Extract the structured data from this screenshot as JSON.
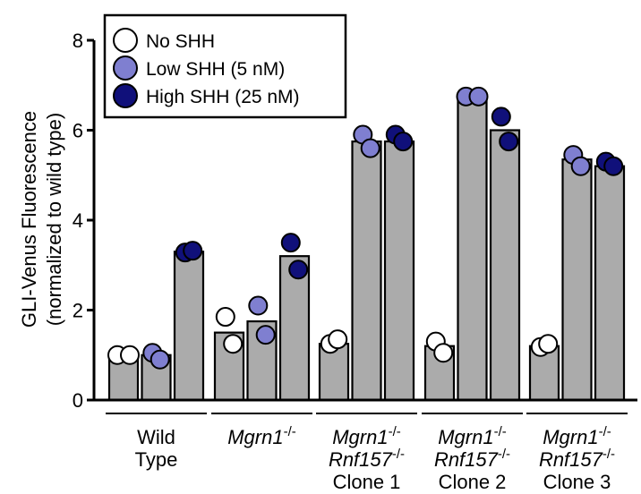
{
  "chart_data": {
    "type": "bar",
    "ylabel_line1": "GLI-Venus Fluorescence",
    "ylabel_line2": "(normalized to wild type)",
    "ylim": [
      0,
      8
    ],
    "yticks": [
      "0",
      "2",
      "4",
      "6",
      "8"
    ],
    "series": [
      {
        "name": "No SHH",
        "color": "#ffffff"
      },
      {
        "name": "Low SHH (5 nM)",
        "color": "#7f7fd0"
      },
      {
        "name": "High SHH (25 nM)",
        "color": "#10107a"
      }
    ],
    "groups": [
      {
        "label_lines": [
          [
            "Wild"
          ],
          [
            "Type"
          ]
        ],
        "bars": [
          {
            "series": 0,
            "value": 1.0,
            "points": [
              1.0,
              1.0
            ]
          },
          {
            "series": 1,
            "value": 1.0,
            "points": [
              1.05,
              0.9
            ]
          },
          {
            "series": 2,
            "value": 3.3,
            "points": [
              3.28,
              3.32
            ]
          }
        ]
      },
      {
        "label_lines": [
          [
            "Mgrn1",
            "-/-"
          ]
        ],
        "bars": [
          {
            "series": 0,
            "value": 1.5,
            "points": [
              1.85,
              1.25
            ]
          },
          {
            "series": 1,
            "value": 1.75,
            "points": [
              2.1,
              1.45
            ]
          },
          {
            "series": 2,
            "value": 3.2,
            "points": [
              3.5,
              2.9
            ]
          }
        ]
      },
      {
        "label_lines": [
          [
            "Mgrn1",
            "-/-"
          ],
          [
            "Rnf157",
            "-/-"
          ],
          [
            "Clone 1"
          ]
        ],
        "bars": [
          {
            "series": 0,
            "value": 1.25,
            "points": [
              1.25,
              1.35
            ]
          },
          {
            "series": 1,
            "value": 5.75,
            "points": [
              5.9,
              5.6
            ]
          },
          {
            "series": 2,
            "value": 5.75,
            "points": [
              5.9,
              5.75
            ]
          }
        ]
      },
      {
        "label_lines": [
          [
            "Mgrn1",
            "-/-"
          ],
          [
            "Rnf157",
            "-/-"
          ],
          [
            "Clone 2"
          ]
        ],
        "bars": [
          {
            "series": 0,
            "value": 1.2,
            "points": [
              1.3,
              1.05
            ]
          },
          {
            "series": 1,
            "value": 6.75,
            "points": [
              6.75,
              6.75
            ]
          },
          {
            "series": 2,
            "value": 6.0,
            "points": [
              6.3,
              5.75
            ]
          }
        ]
      },
      {
        "label_lines": [
          [
            "Mgrn1",
            "-/-"
          ],
          [
            "Rnf157",
            "-/-"
          ],
          [
            "Clone 3"
          ]
        ],
        "bars": [
          {
            "series": 0,
            "value": 1.2,
            "points": [
              1.18,
              1.25
            ]
          },
          {
            "series": 1,
            "value": 5.35,
            "points": [
              5.45,
              5.2
            ]
          },
          {
            "series": 2,
            "value": 5.2,
            "points": [
              5.3,
              5.2
            ]
          }
        ]
      }
    ],
    "bar_color": "#ababab",
    "legend_placement": "top-left",
    "grid": false
  }
}
